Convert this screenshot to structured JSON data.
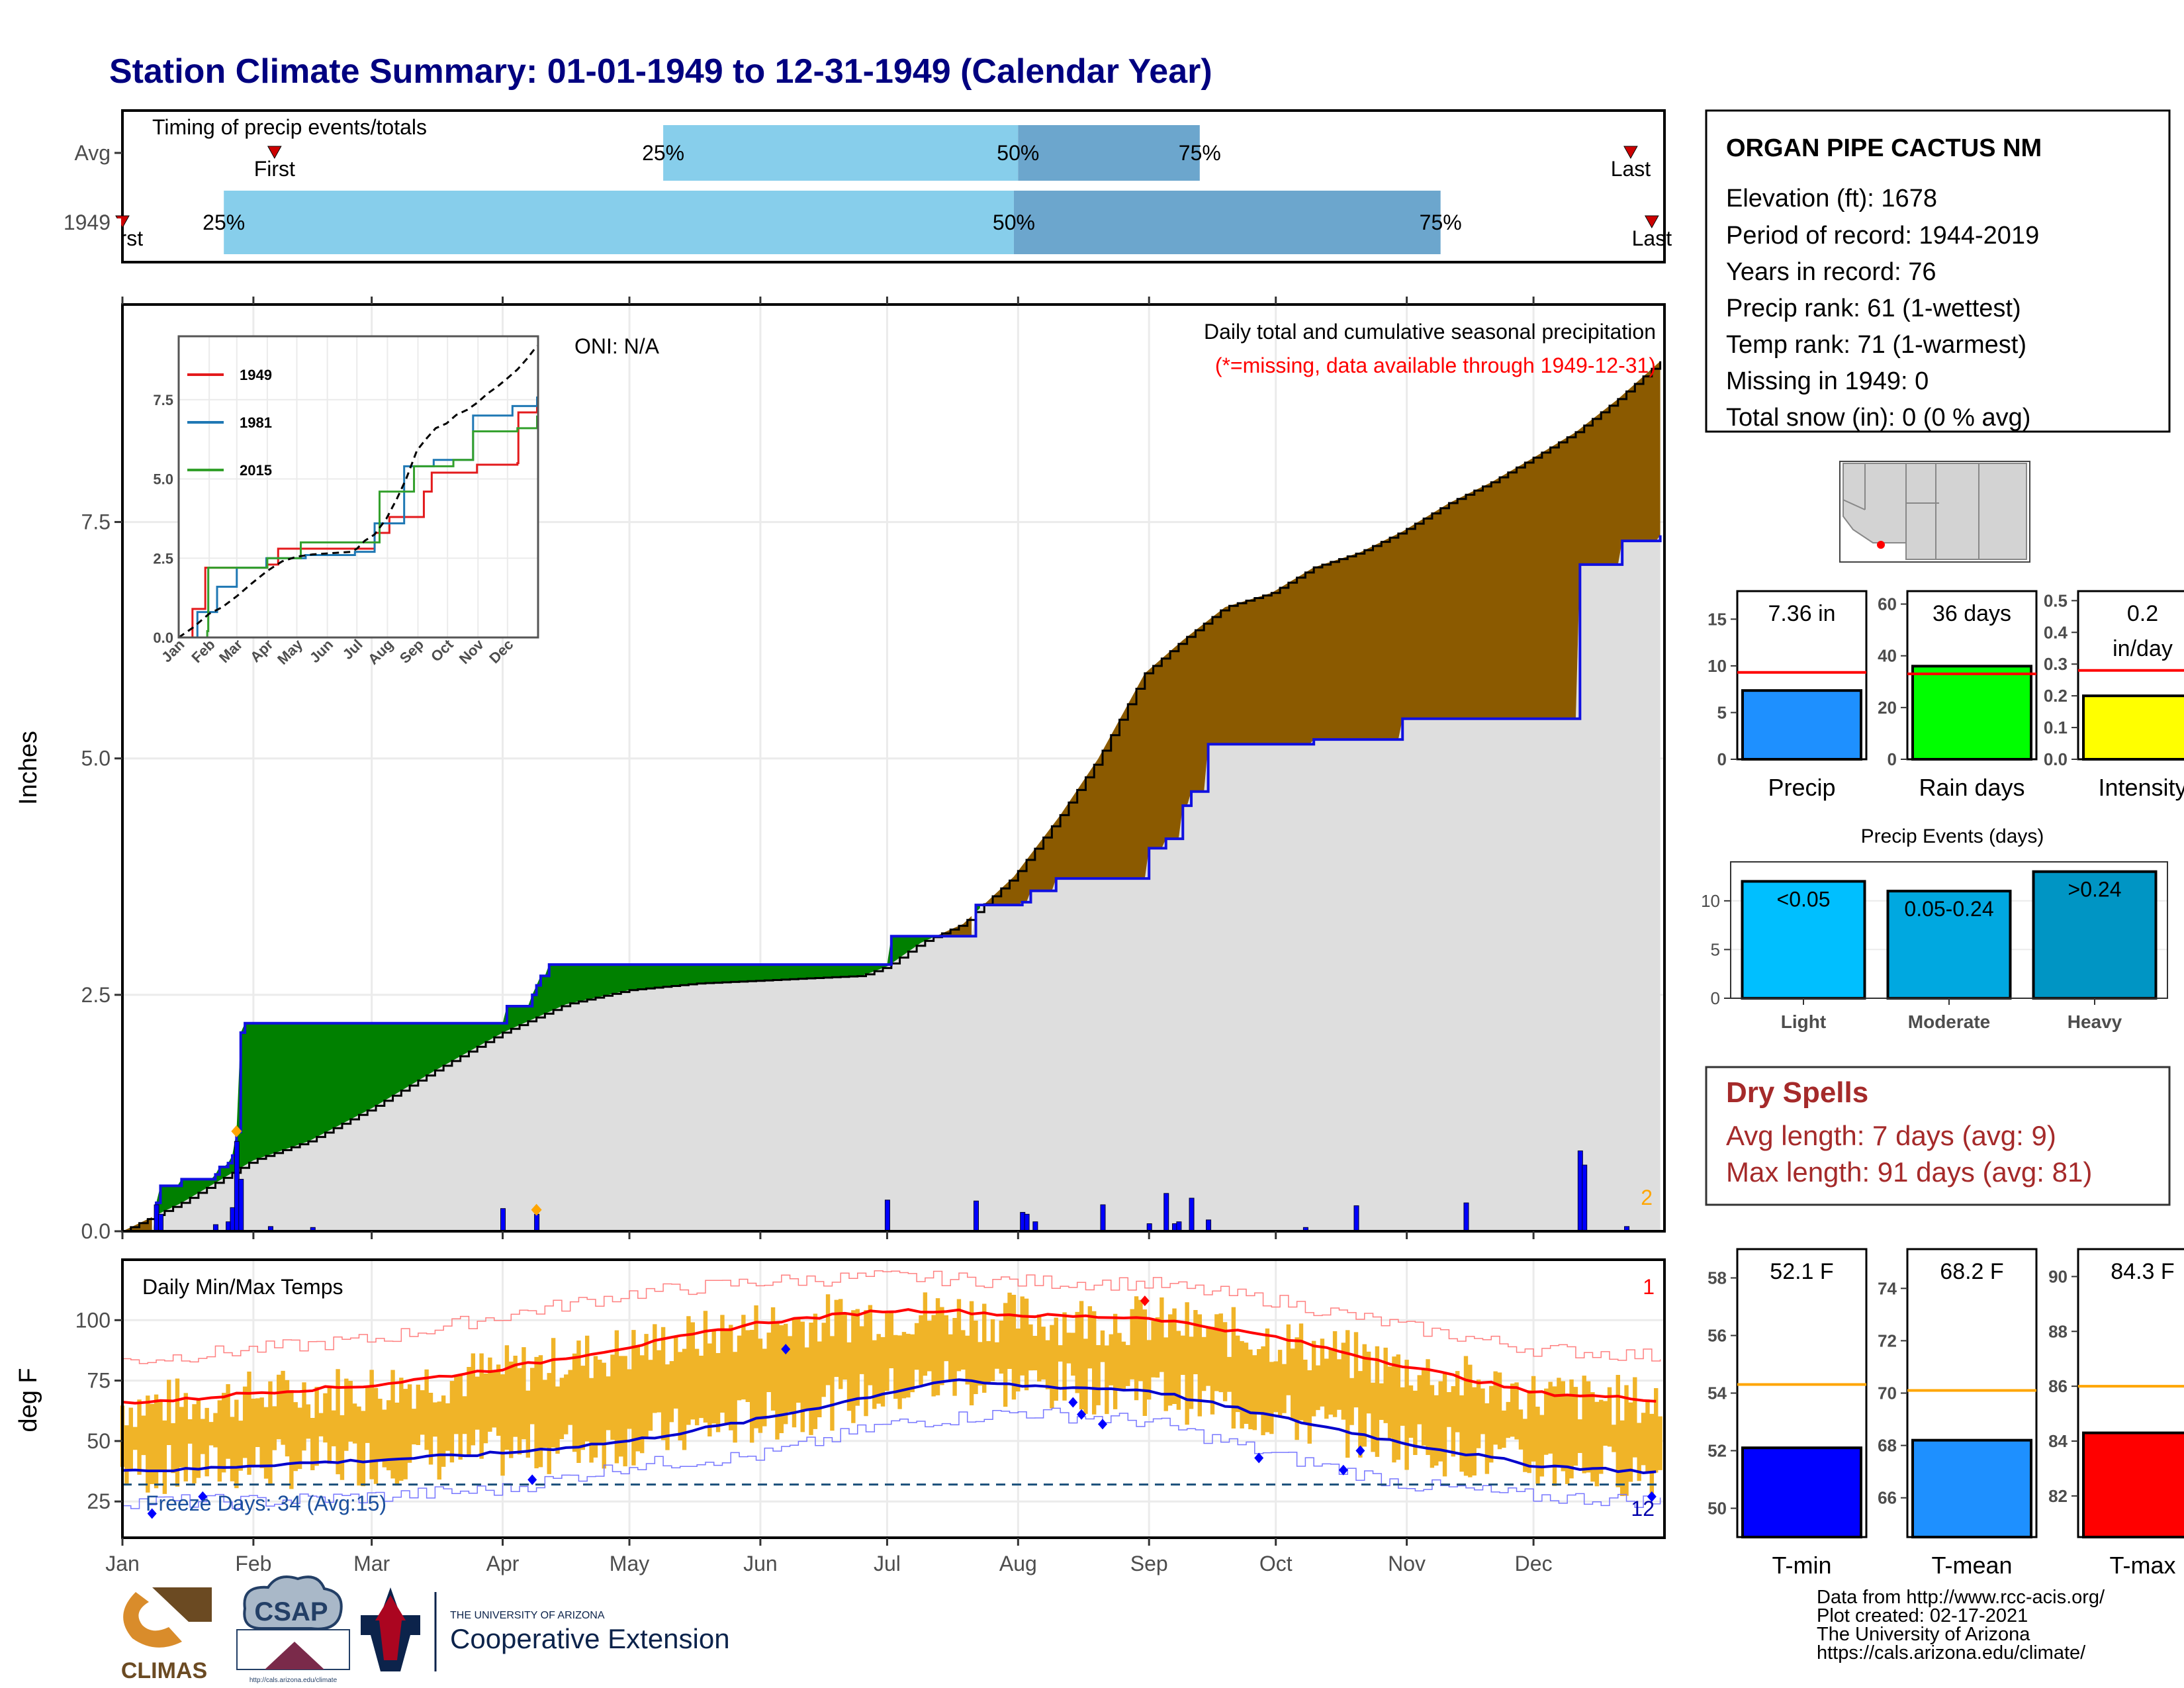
{
  "title": "Station Climate Summary: 01-01-1949 to 12-31-1949 (Calendar Year)",
  "months": [
    "Jan",
    "Feb",
    "Mar",
    "Apr",
    "May",
    "Jun",
    "Jul",
    "Aug",
    "Sep",
    "Oct",
    "Nov",
    "Dec"
  ],
  "timing": {
    "label": "Timing of precip events/totals",
    "rows": [
      {
        "name": "Avg",
        "p25": "25%",
        "p50": "50%",
        "p75": "75%",
        "first": "First",
        "last": "Last",
        "first_day": 37,
        "p25_day": 129,
        "p50_day": 213,
        "p75_day": 256,
        "last_day": 358
      },
      {
        "name": "1949",
        "p25": "25%",
        "p50": "50%",
        "p75": "75%",
        "first": "First",
        "last": "Last",
        "first_day": 1,
        "p25_day": 25,
        "p50_day": 212,
        "p75_day": 313,
        "last_day": 363
      }
    ]
  },
  "station": {
    "name": "ORGAN PIPE CACTUS NM",
    "lines": [
      "Elevation (ft): 1678",
      "Period of record: 1944-2019",
      "Years in record: 76",
      "Precip rank: 61 (1-wettest)",
      "Temp rank: 71 (1-warmest)",
      "Missing in 1949: 0",
      "Total snow (in): 0 (0 % avg)"
    ]
  },
  "precip_panel": {
    "ylabel": "Inches",
    "oni": "ONI: N/A",
    "title": "Daily total and cumulative seasonal precipitation",
    "subtitle": "(*=missing, data available through 1949-12-31)",
    "count_label": "2",
    "yticks": [
      "0.0",
      "2.5",
      "5.0",
      "7.5"
    ]
  },
  "inset": {
    "legend": [
      "1949",
      "1981",
      "2015"
    ],
    "yticks": [
      "0.0",
      "2.5",
      "5.0",
      "7.5"
    ],
    "months": [
      "Jan",
      "Feb",
      "Mar",
      "Apr",
      "May",
      "Jun",
      "Jul",
      "Aug",
      "Sep",
      "Oct",
      "Nov",
      "Dec"
    ]
  },
  "stat_bars": {
    "precip": {
      "label": "Precip",
      "value_label": "7.36 in",
      "value": 7.36,
      "avg": 9.3,
      "ymax": 18,
      "ticks": [
        "0",
        "5",
        "10",
        "15"
      ],
      "color": "#1e90ff"
    },
    "rain_days": {
      "label": "Rain days",
      "value_label": "36 days",
      "value": 36,
      "avg": 33,
      "ymax": 65,
      "ticks": [
        "0",
        "20",
        "40",
        "60"
      ],
      "color": "#00ff00"
    },
    "intensity": {
      "label": "Intensity",
      "value_label_1": "0.2",
      "value_label_2": "in/day",
      "value": 0.2,
      "avg": 0.28,
      "ymax": 0.53,
      "ticks": [
        "0.0",
        "0.1",
        "0.2",
        "0.3",
        "0.4",
        "0.5"
      ],
      "color": "#ffff00"
    }
  },
  "events": {
    "title": "Precip Events (days)",
    "categories": [
      "Light",
      "Moderate",
      "Heavy"
    ],
    "bar_labels": [
      "<0.05",
      "0.05-0.24",
      ">0.24"
    ],
    "values": [
      12,
      11,
      13
    ],
    "ticks": [
      "0",
      "5",
      "10"
    ],
    "colors": [
      "#00bfff",
      "#00a8e0",
      "#0095c4"
    ]
  },
  "dry_spells": {
    "title": "Dry Spells",
    "avg": "Avg length: 7 days (avg: 9)",
    "max": "Max length: 91 days (avg: 81)"
  },
  "temp_panel": {
    "label": "Daily Min/Max Temps",
    "ylabel": "deg F",
    "freeze": "Freeze Days: 34 (Avg:15)",
    "count_top": "1",
    "count_bottom": "12",
    "yticks": [
      "25",
      "50",
      "75",
      "100"
    ]
  },
  "temp_bars": {
    "tmin": {
      "label": "T-min",
      "value_label": "52.1 F",
      "value": 52.1,
      "avg": 54.3,
      "ymin": 49,
      "ymax": 59,
      "ticks": [
        "50",
        "52",
        "54",
        "56",
        "58"
      ],
      "color": "#0000ff"
    },
    "tmean": {
      "label": "T-mean",
      "value_label": "68.2 F",
      "value": 68.2,
      "avg": 70.1,
      "ymin": 64.5,
      "ymax": 75.5,
      "ticks": [
        "66",
        "68",
        "70",
        "72",
        "74"
      ],
      "color": "#1e90ff"
    },
    "tmax": {
      "label": "T-max",
      "value_label": "84.3 F",
      "value": 84.3,
      "avg": 86,
      "ymin": 80.5,
      "ymax": 91,
      "ticks": [
        "82",
        "84",
        "86",
        "88",
        "90"
      ],
      "color": "#ff0000"
    }
  },
  "footer": {
    "lines": [
      "Data from http://www.rcc-acis.org/",
      "Plot created: 02-17-2021",
      "The University of Arizona",
      "https://cals.arizona.edu/climate/"
    ],
    "climas": "CLIMAS",
    "csap": "CSAP",
    "csap_url": "http://cals.arizona.edu/climate",
    "ua_small": "THE UNIVERSITY OF ARIZONA",
    "ua_big": "Cooperative Extension"
  },
  "chart_data": {
    "type": "area",
    "title": "Daily total and cumulative seasonal precipitation",
    "ylabel": "Inches",
    "ylim": [
      0,
      9.8
    ],
    "months": [
      "Jan",
      "Feb",
      "Mar",
      "Apr",
      "May",
      "Jun",
      "Jul",
      "Aug",
      "Sep",
      "Oct",
      "Nov",
      "Dec"
    ],
    "series": [
      {
        "name": "1949",
        "kind": "cumulative step",
        "points": [
          [
            1,
            0
          ],
          [
            9,
            0.3
          ],
          [
            10,
            0.48
          ],
          [
            15,
            0.55
          ],
          [
            23,
            0.6
          ],
          [
            24,
            0.68
          ],
          [
            26,
            0.72
          ],
          [
            27,
            0.8
          ],
          [
            28,
            1.05
          ],
          [
            29,
            2.1
          ],
          [
            30,
            2.2
          ],
          [
            91,
            2.2
          ],
          [
            92,
            2.38
          ],
          [
            98,
            2.5
          ],
          [
            99,
            2.6
          ],
          [
            100,
            2.7
          ],
          [
            102,
            2.82
          ],
          [
            182,
            2.82
          ],
          [
            183,
            3.12
          ],
          [
            202,
            3.12
          ],
          [
            203,
            3.45
          ],
          [
            214,
            3.48
          ],
          [
            216,
            3.6
          ],
          [
            222,
            3.73
          ],
          [
            243,
            3.73
          ],
          [
            244,
            4.05
          ],
          [
            248,
            4.15
          ],
          [
            252,
            4.5
          ],
          [
            254,
            4.65
          ],
          [
            258,
            5.15
          ],
          [
            283,
            5.2
          ],
          [
            303,
            5.2
          ],
          [
            304,
            5.42
          ],
          [
            345,
            5.42
          ],
          [
            346,
            7.05
          ],
          [
            356,
            7.3
          ],
          [
            365,
            7.36
          ]
        ]
      },
      {
        "name": "Avg",
        "kind": "cumulative",
        "points": [
          [
            1,
            0
          ],
          [
            15,
            0.3
          ],
          [
            32,
            0.75
          ],
          [
            45,
            0.95
          ],
          [
            60,
            1.3
          ],
          [
            75,
            1.7
          ],
          [
            91,
            2.1
          ],
          [
            106,
            2.4
          ],
          [
            121,
            2.55
          ],
          [
            137,
            2.62
          ],
          [
            152,
            2.65
          ],
          [
            166,
            2.68
          ],
          [
            176,
            2.7
          ],
          [
            182,
            2.8
          ],
          [
            190,
            3.05
          ],
          [
            200,
            3.25
          ],
          [
            212,
            3.75
          ],
          [
            223,
            4.4
          ],
          [
            232,
            5.0
          ],
          [
            243,
            5.9
          ],
          [
            252,
            6.25
          ],
          [
            262,
            6.6
          ],
          [
            273,
            6.75
          ],
          [
            283,
            7.02
          ],
          [
            294,
            7.18
          ],
          [
            304,
            7.4
          ],
          [
            315,
            7.7
          ],
          [
            325,
            7.92
          ],
          [
            335,
            8.18
          ],
          [
            345,
            8.45
          ],
          [
            355,
            8.8
          ],
          [
            365,
            9.2
          ]
        ]
      },
      {
        "name": "Daily precip",
        "kind": "bars",
        "points": [
          [
            9,
            0.28
          ],
          [
            10,
            0.18
          ],
          [
            23,
            0.07
          ],
          [
            26,
            0.1
          ],
          [
            27,
            0.25
          ],
          [
            28,
            0.95
          ],
          [
            29,
            0.55
          ],
          [
            36,
            0.05
          ],
          [
            46,
            0.04
          ],
          [
            91,
            0.24
          ],
          [
            99,
            0.18
          ],
          [
            182,
            0.33
          ],
          [
            203,
            0.32
          ],
          [
            214,
            0.2
          ],
          [
            215,
            0.18
          ],
          [
            217,
            0.1
          ],
          [
            233,
            0.28
          ],
          [
            244,
            0.08
          ],
          [
            248,
            0.4
          ],
          [
            250,
            0.08
          ],
          [
            251,
            0.1
          ],
          [
            254,
            0.35
          ],
          [
            258,
            0.12
          ],
          [
            281,
            0.04
          ],
          [
            293,
            0.27
          ],
          [
            319,
            0.3
          ],
          [
            346,
            0.85
          ],
          [
            347,
            0.7
          ],
          [
            357,
            0.05
          ]
        ]
      }
    ],
    "temps": {
      "ylim": [
        10,
        125
      ],
      "avg_max": [
        [
          1,
          66
        ],
        [
          15,
          67
        ],
        [
          32,
          70
        ],
        [
          60,
          73
        ],
        [
          91,
          80
        ],
        [
          121,
          89
        ],
        [
          152,
          99
        ],
        [
          182,
          104
        ],
        [
          196,
          104
        ],
        [
          213,
          102
        ],
        [
          244,
          101
        ],
        [
          274,
          93
        ],
        [
          305,
          81
        ],
        [
          335,
          70
        ],
        [
          365,
          67
        ]
      ],
      "avg_min": [
        [
          1,
          38
        ],
        [
          15,
          38
        ],
        [
          32,
          40
        ],
        [
          60,
          42
        ],
        [
          91,
          45
        ],
        [
          121,
          50
        ],
        [
          152,
          59
        ],
        [
          182,
          70
        ],
        [
          196,
          75
        ],
        [
          213,
          73
        ],
        [
          244,
          71
        ],
        [
          274,
          60
        ],
        [
          305,
          49
        ],
        [
          335,
          40
        ],
        [
          365,
          37
        ]
      ],
      "record_max": [
        [
          1,
          83
        ],
        [
          32,
          88
        ],
        [
          60,
          92
        ],
        [
          91,
          102
        ],
        [
          121,
          111
        ],
        [
          152,
          116
        ],
        [
          182,
          118
        ],
        [
          213,
          116
        ],
        [
          244,
          115
        ],
        [
          274,
          108
        ],
        [
          305,
          97
        ],
        [
          335,
          88
        ],
        [
          365,
          85
        ]
      ],
      "record_min": [
        [
          1,
          25
        ],
        [
          32,
          25
        ],
        [
          60,
          27
        ],
        [
          91,
          30
        ],
        [
          121,
          40
        ],
        [
          152,
          44
        ],
        [
          182,
          57
        ],
        [
          213,
          62
        ],
        [
          244,
          58
        ],
        [
          274,
          44
        ],
        [
          305,
          32
        ],
        [
          335,
          27
        ],
        [
          365,
          25
        ]
      ],
      "freeze_line": 32
    }
  }
}
